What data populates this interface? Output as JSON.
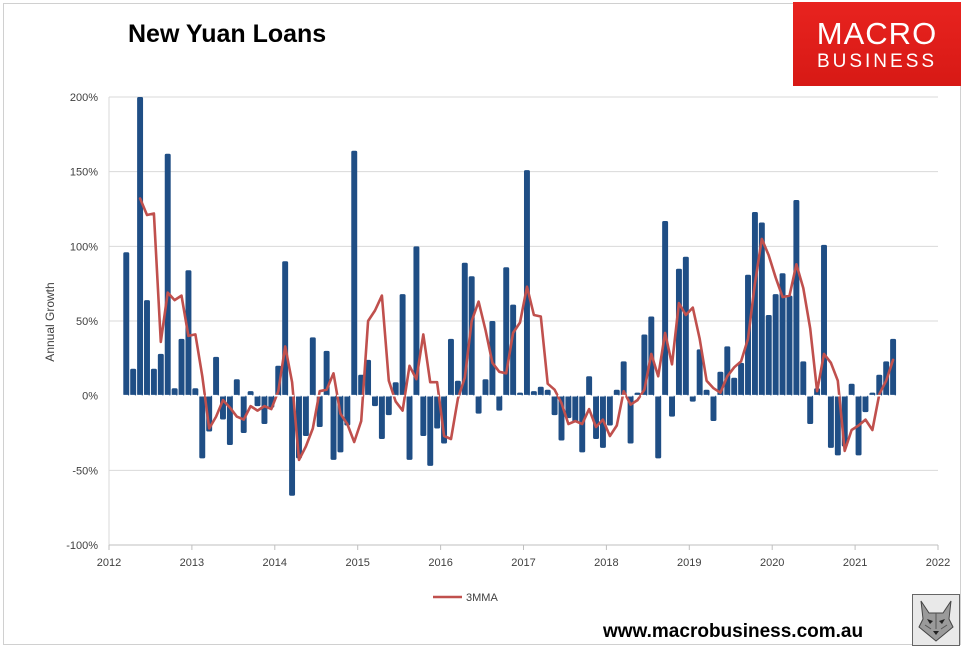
{
  "header": {
    "title": "New Yuan Loans"
  },
  "logo": {
    "line1": "MACRO",
    "line2": "BUSINESS"
  },
  "footer": {
    "url": "www.macrobusiness.com.au"
  },
  "colors": {
    "bar": "#1f4e85",
    "line": "#c0504d",
    "logo_bg": "#e2211c"
  },
  "icons": {
    "watermark": "wolf-logo-icon"
  },
  "chart_data": {
    "type": "bar",
    "title": "New Yuan Loans",
    "xlabel": "",
    "ylabel": "Annual Growth",
    "xlim": [
      2012,
      2022
    ],
    "ylim": [
      -100,
      200
    ],
    "x_ticks": [
      "2012",
      "2013",
      "2014",
      "2015",
      "2016",
      "2017",
      "2018",
      "2019",
      "2020",
      "2021",
      "2022"
    ],
    "y_ticks": [
      {
        "value": 200,
        "label": "200%"
      },
      {
        "value": 150,
        "label": "150%"
      },
      {
        "value": 100,
        "label": "100%"
      },
      {
        "value": 50,
        "label": "50%"
      },
      {
        "value": 0,
        "label": "0%"
      },
      {
        "value": -50,
        "label": "-50%"
      },
      {
        "value": -100,
        "label": "-100%"
      }
    ],
    "grid": true,
    "legend_position": "bottom",
    "start": "2012-03",
    "series": [
      {
        "type": "bar",
        "values": [
          96,
          18,
          200,
          64,
          18,
          28,
          162,
          5,
          38,
          84,
          5,
          -42,
          -24,
          26,
          -16,
          -33,
          11,
          -25,
          3,
          -7,
          -19,
          -8,
          20,
          90,
          -67,
          -42,
          -27,
          39,
          -21,
          30,
          -43,
          -38,
          -20,
          164,
          14,
          24,
          -7,
          -29,
          -13,
          9,
          68,
          -43,
          100,
          -27,
          -47,
          -22,
          -32,
          38,
          10,
          89,
          80,
          -12,
          11,
          50,
          -10,
          86,
          61,
          2,
          151,
          3,
          6,
          4,
          -13,
          -30,
          -15,
          -18,
          -38,
          13,
          -29,
          -35,
          -20,
          4,
          23,
          -32,
          2,
          41,
          53,
          -42,
          117,
          -14,
          85,
          93,
          -4,
          31,
          4,
          -17,
          16,
          33,
          12,
          22,
          81,
          123,
          116,
          54,
          68,
          82,
          67,
          131,
          23,
          -19,
          5,
          101,
          -35,
          -40,
          -34,
          8,
          -40,
          -11,
          2,
          14,
          23,
          38
        ]
      },
      {
        "type": "line",
        "name": "3MMA",
        "start": "2012-05",
        "values": [
          132,
          121,
          122,
          36,
          69,
          64,
          67,
          40,
          41,
          13,
          -22,
          -14,
          -3,
          -8,
          -14,
          -16,
          -7,
          -10,
          -7,
          -9,
          3,
          33,
          9,
          -43,
          -34,
          -22,
          3,
          4,
          15,
          -12,
          -19,
          -31,
          -17,
          50,
          57,
          67,
          10,
          -4,
          -10,
          20,
          11,
          41,
          9,
          9,
          -27,
          -29,
          -2,
          12,
          50,
          63,
          44,
          22,
          16,
          15,
          42,
          49,
          73,
          54,
          53,
          8,
          4,
          -5,
          -19,
          -17,
          -19,
          -9,
          -21,
          -16,
          -27,
          -20,
          3,
          -6,
          -3,
          4,
          28,
          13,
          42,
          21,
          62,
          54,
          59,
          38,
          10,
          5,
          2,
          13,
          19,
          23,
          38,
          75,
          105,
          94,
          79,
          66,
          67,
          88,
          72,
          45,
          3,
          28,
          22,
          10,
          -37,
          -23,
          -20,
          -16,
          -23,
          1,
          10,
          24
        ]
      }
    ]
  }
}
